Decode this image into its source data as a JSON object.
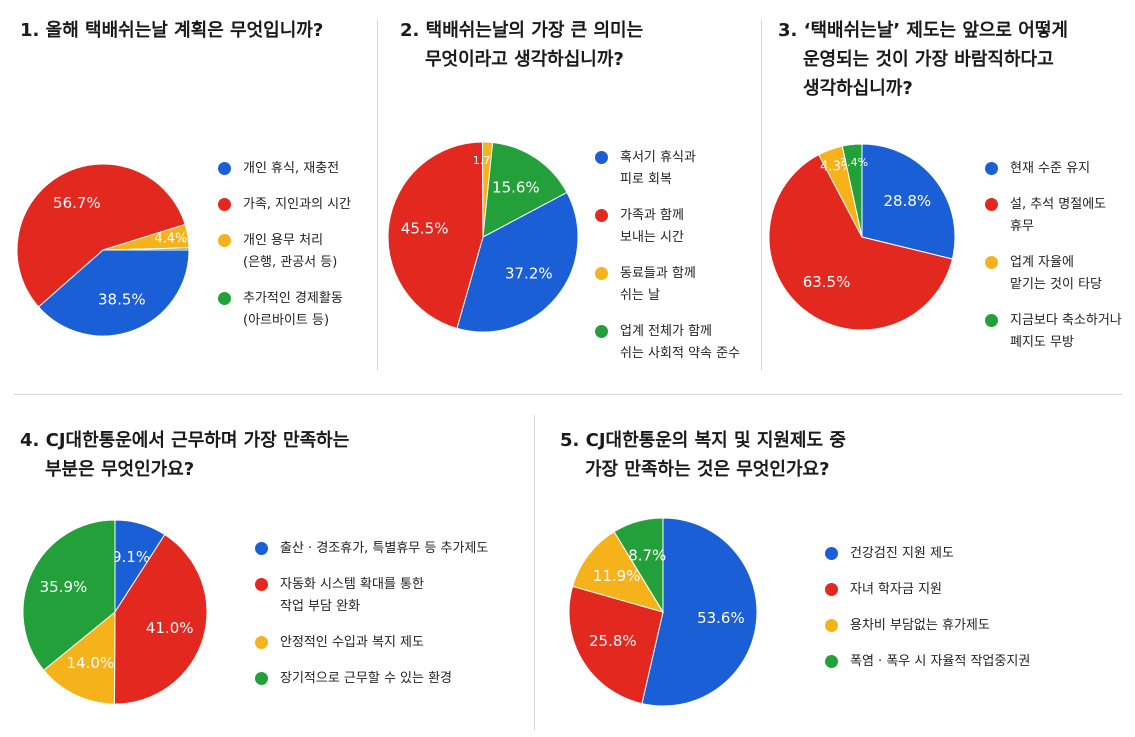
{
  "chart_data": [
    {
      "type": "pie",
      "title": [
        "1. 올해 택배쉬는날 계획은 무엇입니까?"
      ],
      "categories": [
        "개인 휴식, 재충전",
        "가족, 지인과의 시간",
        "개인 용무 처리\n(은행, 관공서 등)",
        "추가적인 경제활동\n(아르바이트 등)"
      ],
      "values": [
        38.5,
        56.7,
        4.4,
        0.4
      ],
      "value_labels": [
        "38.5%",
        "56.7%",
        "4.4%",
        null
      ],
      "colors": [
        "#1a5fd6",
        "#e3281f",
        "#f5b21a",
        "#24a03a"
      ]
    },
    {
      "type": "pie",
      "title": [
        "2. 택배쉬는날의 가장 큰 의미는",
        "무엇이라고 생각하십니까?"
      ],
      "categories": [
        "혹서기 휴식과\n피로 회복",
        "가족과 함께\n보내는 시간",
        "동료들과 함께\n쉬는 날",
        "업계 전체가 함께\n쉬는 사회적 약속 준수"
      ],
      "values": [
        37.2,
        45.5,
        1.7,
        15.6
      ],
      "value_labels": [
        "37.2%",
        "45.5%",
        "1.7%",
        "15.6%"
      ],
      "colors": [
        "#1a5fd6",
        "#e3281f",
        "#f5b21a",
        "#24a03a"
      ]
    },
    {
      "type": "pie",
      "title": [
        "3. ‘택배쉬는날’ 제도는 앞으로 어떻게",
        "운영되는 것이 가장 바람직하다고",
        "생각하십니까?"
      ],
      "categories": [
        "현재 수준 유지",
        "설, 추석 명절에도\n휴무",
        "업계 자율에\n맡기는 것이 타당",
        "지금보다 축소하거나\n폐지도 무방"
      ],
      "values": [
        28.8,
        63.5,
        4.3,
        3.4
      ],
      "value_labels": [
        "28.8%",
        "63.5%",
        "4.3%",
        "3.4%"
      ],
      "colors": [
        "#1a5fd6",
        "#e3281f",
        "#f5b21a",
        "#24a03a"
      ]
    },
    {
      "type": "pie",
      "title": [
        "4. CJ대한통운에서 근무하며 가장 만족하는",
        "부분은 무엇인가요?"
      ],
      "categories": [
        "출산 · 경조휴가, 특별휴무 등 추가제도",
        "자동화 시스템 확대를 통한\n작업 부담 완화",
        "안정적인 수입과 복지 제도",
        "장기적으로 근무할 수 있는 환경"
      ],
      "values": [
        9.1,
        41.0,
        14.0,
        35.9
      ],
      "value_labels": [
        "9.1%",
        "41.0%",
        "14.0%",
        "35.9%"
      ],
      "colors": [
        "#1a5fd6",
        "#e3281f",
        "#f5b21a",
        "#24a03a"
      ]
    },
    {
      "type": "pie",
      "title": [
        "5. CJ대한통운의 복지 및 지원제도 중",
        "가장 만족하는 것은 무엇인가요?"
      ],
      "categories": [
        "건강검진 지원 제도",
        "자녀 학자금 지원",
        "용차비 부담없는 휴가제도",
        "폭염 · 폭우 시 자율적 작업중지권"
      ],
      "values": [
        53.6,
        25.8,
        11.9,
        8.7
      ],
      "value_labels": [
        "53.6%",
        "25.8%",
        "11.9%",
        "8.7%"
      ],
      "colors": [
        "#1a5fd6",
        "#e3281f",
        "#f5b21a",
        "#24a03a"
      ]
    }
  ]
}
